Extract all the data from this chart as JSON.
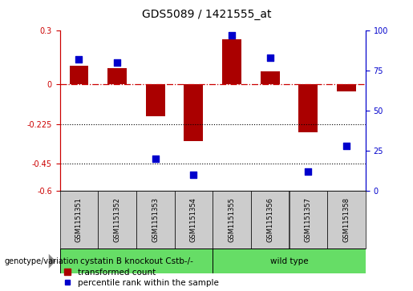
{
  "title": "GDS5089 / 1421555_at",
  "samples": [
    "GSM1151351",
    "GSM1151352",
    "GSM1151353",
    "GSM1151354",
    "GSM1151355",
    "GSM1151356",
    "GSM1151357",
    "GSM1151358"
  ],
  "transformed_count": [
    0.1,
    0.09,
    -0.18,
    -0.32,
    0.25,
    0.07,
    -0.27,
    -0.04
  ],
  "percentile_rank": [
    82,
    80,
    20,
    10,
    97,
    83,
    12,
    28
  ],
  "ylim_left": [
    -0.6,
    0.3
  ],
  "ylim_right": [
    0,
    100
  ],
  "yticks_left": [
    0.3,
    0.0,
    -0.225,
    -0.45,
    -0.6
  ],
  "yticks_right": [
    100,
    75,
    50,
    25,
    0
  ],
  "bar_color": "#aa0000",
  "dot_color": "#0000cc",
  "background_color": "#ffffff",
  "group1_label": "cystatin B knockout Cstb-/-",
  "group2_label": "wild type",
  "group1_count": 4,
  "group2_count": 4,
  "group_color": "#66dd66",
  "sample_box_color": "#cccccc",
  "genotype_label": "genotype/variation",
  "legend_bar_label": "transformed count",
  "legend_dot_label": "percentile rank within the sample",
  "bar_width": 0.5,
  "dot_size": 30,
  "left_color": "#cc0000",
  "right_color": "#0000cc",
  "title_fontsize": 10,
  "tick_fontsize": 7,
  "label_fontsize": 7.5
}
